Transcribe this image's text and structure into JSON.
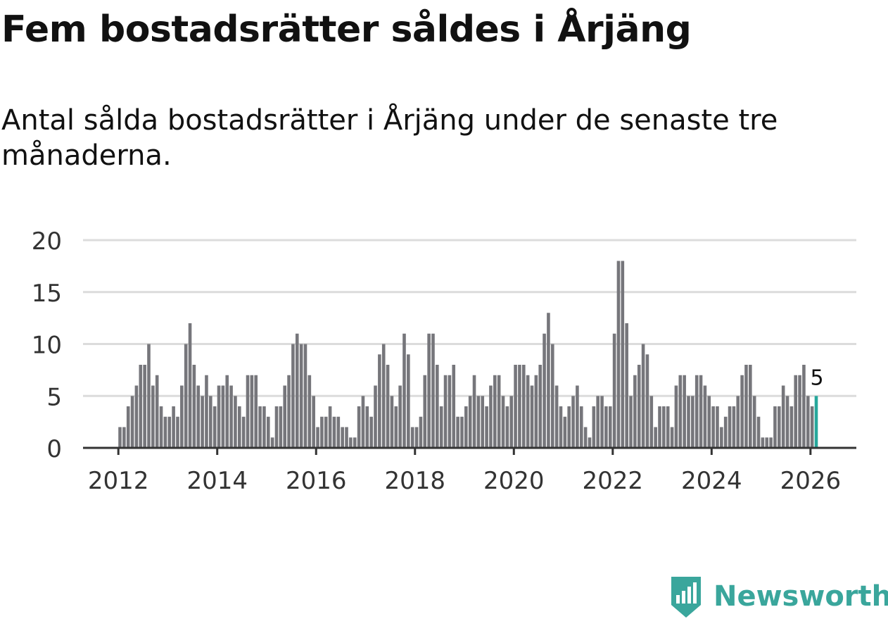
{
  "title": "Fem bostadsrätter såldes i Årjäng",
  "subtitle": "Antal sålda bostadsrätter i Årjäng under de senaste tre månaderna.",
  "brand": "Newsworthy",
  "colors": {
    "bar": "#76767b",
    "highlight": "#26a79b",
    "grid": "#dcdcdc",
    "axis": "#333333",
    "brand": "#3aa69c"
  },
  "chart_data": {
    "type": "bar",
    "title": "Antal sålda bostadsrätter i Årjäng",
    "xlabel": "",
    "ylabel": "",
    "start_year": 2012,
    "start_month": 1,
    "interval": "month",
    "ylim": [
      0,
      20
    ],
    "yticks": [
      0,
      5,
      10,
      15,
      20
    ],
    "xticks": [
      "2012",
      "2014",
      "2016",
      "2018",
      "2020",
      "2022",
      "2024",
      "2026"
    ],
    "values": [
      2,
      2,
      4,
      5,
      6,
      8,
      8,
      10,
      6,
      7,
      4,
      3,
      3,
      4,
      3,
      6,
      10,
      12,
      8,
      6,
      5,
      7,
      5,
      4,
      6,
      6,
      7,
      6,
      5,
      4,
      3,
      7,
      7,
      7,
      4,
      4,
      3,
      1,
      4,
      4,
      6,
      7,
      10,
      11,
      10,
      10,
      7,
      5,
      2,
      3,
      3,
      4,
      3,
      3,
      2,
      2,
      1,
      1,
      4,
      5,
      4,
      3,
      6,
      9,
      10,
      8,
      5,
      4,
      6,
      11,
      9,
      2,
      2,
      3,
      7,
      11,
      11,
      8,
      4,
      7,
      7,
      8,
      3,
      3,
      4,
      5,
      7,
      5,
      5,
      4,
      6,
      7,
      7,
      5,
      4,
      5,
      8,
      8,
      8,
      7,
      6,
      7,
      8,
      11,
      13,
      10,
      6,
      4,
      3,
      4,
      5,
      6,
      4,
      2,
      1,
      4,
      5,
      5,
      4,
      4,
      11,
      18,
      18,
      12,
      5,
      7,
      8,
      10,
      9,
      5,
      2,
      4,
      4,
      4,
      2,
      6,
      7,
      7,
      5,
      5,
      7,
      7,
      6,
      5,
      4,
      4,
      2,
      3,
      4,
      4,
      5,
      7,
      8,
      8,
      5,
      3,
      1,
      1,
      1,
      4,
      4,
      6,
      5,
      4,
      7,
      7,
      8,
      5,
      4,
      5
    ],
    "highlight_label": "5"
  }
}
